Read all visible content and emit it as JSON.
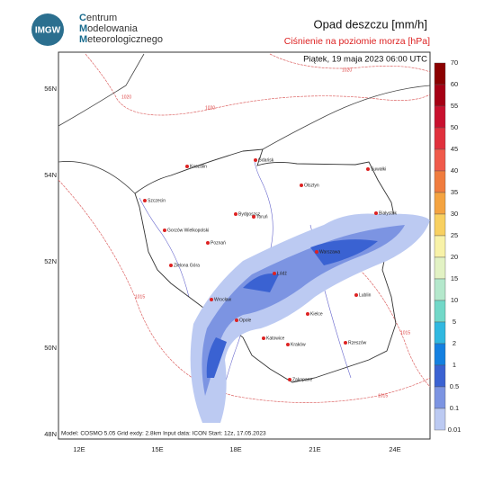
{
  "header": {
    "logo_text": "IMGW",
    "org_lines": [
      "Centrum",
      "Modelowania",
      "Meteorologicznego"
    ],
    "title": "Opad deszczu [mm/h]",
    "subtitle": "Ciśnienie na poziomie morza [hPa]"
  },
  "map": {
    "valid_time": "Piątek, 19 maja 2023 06:00 UTC",
    "footer": "Model: COSMO 5.05  Grid exdy: 2.8km  Input data: ICON  Start: 12z, 17.05.2023",
    "lat_labels": [
      "56N",
      "54N",
      "52N",
      "50N",
      "48N"
    ],
    "lon_labels": [
      "12E",
      "15E",
      "18E",
      "21E",
      "24E"
    ],
    "cities": [
      "Szczecin",
      "Koszalin",
      "Gdańsk",
      "Suwałki",
      "Olsztyn",
      "Białystok",
      "Bydgoszcz",
      "Toruń",
      "Gorzów Wielkopolski",
      "Poznań",
      "Warszawa",
      "Zielona Góra",
      "Łódź",
      "Lublin",
      "Wrocław",
      "Opole",
      "Kielce",
      "Katowice",
      "Kraków",
      "Rzeszów",
      "Zakopane"
    ],
    "isobar_labels": [
      "1020",
      "1020",
      "1015",
      "1015",
      "1020",
      "1015"
    ]
  },
  "colorbar": {
    "labels": [
      "70",
      "60",
      "55",
      "50",
      "45",
      "40",
      "35",
      "30",
      "25",
      "20",
      "15",
      "10",
      "5",
      "2",
      "1",
      "0.5",
      "0.1",
      "0.01"
    ],
    "colors": [
      "#8b0000",
      "#a50014",
      "#c8102e",
      "#e0303c",
      "#f05a4a",
      "#f07c3e",
      "#f4a340",
      "#f8d060",
      "#f8f2a8",
      "#e2f2c4",
      "#b4e8cc",
      "#72d8c8",
      "#30b8e0",
      "#1480e0",
      "#3a62d2",
      "#7c94e2",
      "#bccaf2"
    ]
  }
}
